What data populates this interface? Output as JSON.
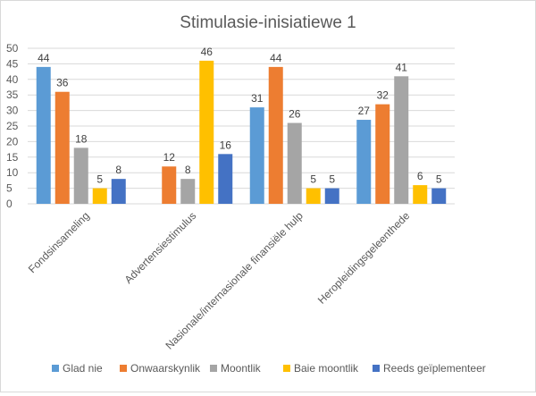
{
  "chart_data": {
    "type": "bar",
    "title": "Stimulasie-inisiatiewe 1",
    "xlabel": "",
    "ylabel": "",
    "ylim": [
      0,
      50
    ],
    "yticks": [
      0,
      5,
      10,
      15,
      20,
      25,
      30,
      35,
      40,
      45,
      50
    ],
    "grid": true,
    "legend_position": "bottom",
    "categories": [
      "Fondsinsameling",
      "Advertensiestimulus",
      "Nasionale/internasionale finansiële hulp",
      "Heropleidingsgeleenthede"
    ],
    "series": [
      {
        "name": "Glad nie",
        "color": "#5B9BD5",
        "values": [
          44,
          null,
          31,
          27
        ]
      },
      {
        "name": "Onwaarskynlik",
        "color": "#ED7D31",
        "values": [
          36,
          12,
          44,
          32
        ]
      },
      {
        "name": "Moontlik",
        "color": "#A5A5A5",
        "values": [
          18,
          8,
          26,
          41
        ]
      },
      {
        "name": "Baie moontlik",
        "color": "#FFC000",
        "values": [
          5,
          46,
          5,
          6
        ]
      },
      {
        "name": "Reeds geïplementeer",
        "color": "#4472C4",
        "values": [
          8,
          16,
          5,
          5
        ]
      }
    ]
  }
}
